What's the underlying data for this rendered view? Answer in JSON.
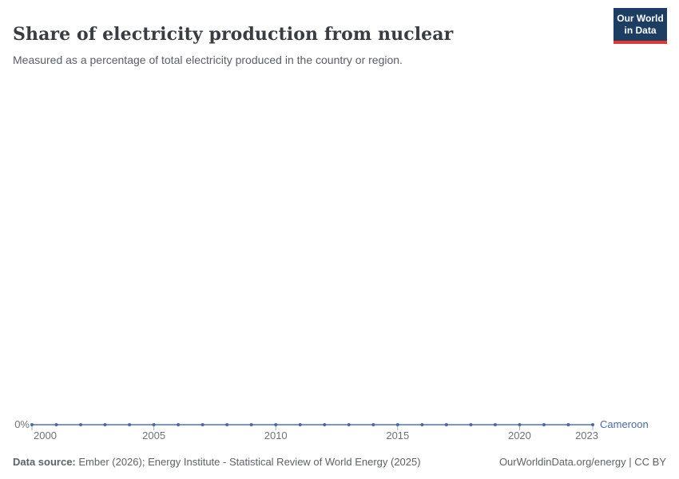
{
  "header": {
    "logo": {
      "line1": "Our World",
      "line2": "in Data"
    }
  },
  "chart_data": {
    "type": "line",
    "title": "Share of electricity production from nuclear",
    "subtitle": "Measured as a percentage of total electricity produced in the country or region.",
    "x": [
      2000,
      2001,
      2002,
      2003,
      2004,
      2005,
      2006,
      2007,
      2008,
      2009,
      2010,
      2011,
      2012,
      2013,
      2014,
      2015,
      2016,
      2017,
      2018,
      2019,
      2020,
      2021,
      2022,
      2023
    ],
    "series": [
      {
        "name": "Cameroon",
        "color": "#4c6a9c",
        "values": [
          0,
          0,
          0,
          0,
          0,
          0,
          0,
          0,
          0,
          0,
          0,
          0,
          0,
          0,
          0,
          0,
          0,
          0,
          0,
          0,
          0,
          0,
          0,
          0
        ]
      }
    ],
    "x_ticks": [
      2000,
      2005,
      2010,
      2015,
      2020,
      2023
    ],
    "y_axis": {
      "tick_labels": [
        "0%"
      ],
      "min": 0,
      "max": 0,
      "unit": "%"
    },
    "xlabel": "",
    "ylabel": "",
    "grid": false,
    "legend_position": "end-of-line"
  },
  "footer": {
    "source_label": "Data source:",
    "source_text": " Ember (2026); Energy Institute - Statistical Review of World Energy (2025)",
    "credit": "OurWorldinData.org/energy | CC BY"
  },
  "colors": {
    "series": "#4c6a9c",
    "logo_bg": "#1d3d63",
    "logo_accent": "#dc3a34",
    "axis_tick": "#a4adb8"
  }
}
